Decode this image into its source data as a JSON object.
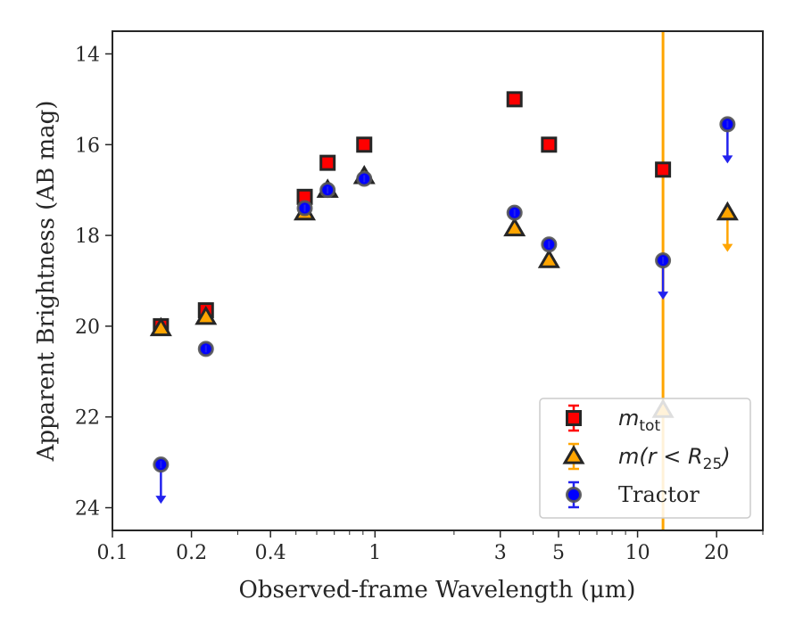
{
  "chart_data": {
    "type": "scatter",
    "xlabel": "Observed-frame Wavelength (μm)",
    "ylabel": "Apparent Brightness (AB mag)",
    "xscale": "log",
    "xlim": [
      0.1,
      30
    ],
    "ylim": [
      24.5,
      13.5
    ],
    "y_inverted": true,
    "x_ticks": [
      0.1,
      0.2,
      0.4,
      1,
      3,
      5,
      10,
      20
    ],
    "x_tick_labels": [
      "0.1",
      "0.2",
      "0.4",
      "1",
      "3",
      "5",
      "10",
      "20"
    ],
    "y_ticks": [
      14,
      16,
      18,
      20,
      22,
      24
    ],
    "y_tick_labels": [
      "14",
      "16",
      "18",
      "20",
      "22",
      "24"
    ],
    "grid": false,
    "legend_position": "bottom-right",
    "vertical_line": {
      "x": 12.5,
      "color": "#ffa500"
    },
    "series": [
      {
        "name": "m_tot",
        "legend_label": {
          "main": "m",
          "sub": "tot"
        },
        "marker": "square",
        "color": "#ff0000",
        "points": [
          {
            "x": 0.153,
            "y": 20.0
          },
          {
            "x": 0.227,
            "y": 19.65
          },
          {
            "x": 0.54,
            "y": 17.15
          },
          {
            "x": 0.66,
            "y": 16.4
          },
          {
            "x": 0.91,
            "y": 16.0
          },
          {
            "x": 3.4,
            "y": 15.0
          },
          {
            "x": 4.6,
            "y": 16.0
          },
          {
            "x": 12.5,
            "y": 16.55
          }
        ]
      },
      {
        "name": "m(r < R25)",
        "legend_label": {
          "main": "m(r < R",
          "sub": "25",
          "tail": ")"
        },
        "marker": "triangle",
        "color": "#ffa500",
        "points": [
          {
            "x": 0.153,
            "y": 20.05
          },
          {
            "x": 0.227,
            "y": 19.8
          },
          {
            "x": 0.54,
            "y": 17.5
          },
          {
            "x": 0.66,
            "y": 17.0
          },
          {
            "x": 0.91,
            "y": 16.7
          },
          {
            "x": 3.4,
            "y": 17.85
          },
          {
            "x": 4.6,
            "y": 18.55
          },
          {
            "x": 12.5,
            "y": 21.85
          },
          {
            "x": 22,
            "y": 17.5,
            "upper_limit": true
          }
        ]
      },
      {
        "name": "Tractor",
        "legend_label": {
          "main": "Tractor"
        },
        "marker": "circle",
        "color": "#0000ff",
        "points": [
          {
            "x": 0.153,
            "y": 23.05,
            "upper_limit": true
          },
          {
            "x": 0.227,
            "y": 20.5
          },
          {
            "x": 0.54,
            "y": 17.4
          },
          {
            "x": 0.66,
            "y": 17.0
          },
          {
            "x": 0.91,
            "y": 16.75
          },
          {
            "x": 3.4,
            "y": 17.5
          },
          {
            "x": 4.6,
            "y": 18.2
          },
          {
            "x": 12.5,
            "y": 18.55,
            "upper_limit": true
          },
          {
            "x": 22,
            "y": 15.55,
            "upper_limit": true
          }
        ]
      }
    ]
  }
}
